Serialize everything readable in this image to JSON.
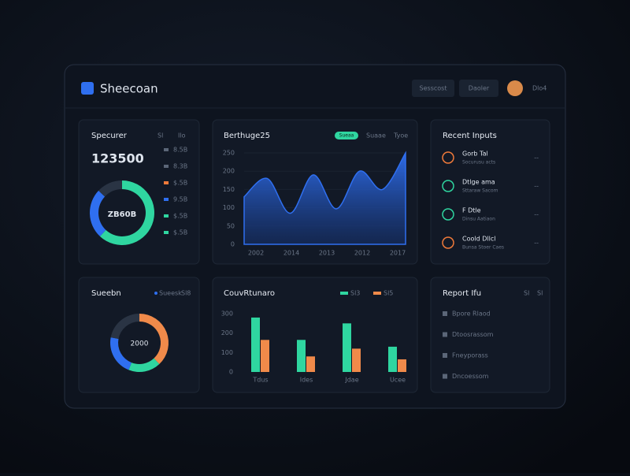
{
  "header": {
    "brand": "Sheecoan",
    "buttons": [
      "Sesscost",
      "Daoler"
    ],
    "user": "Dlo4"
  },
  "summary": {
    "title": "Specurer",
    "tabs": [
      "Sl",
      "Ilo"
    ],
    "value": "123500",
    "center_label": "ZB60B",
    "chart": {
      "type": "pie",
      "values": [
        62,
        25,
        13
      ],
      "colors": [
        "#2fd6a0",
        "#2f6ff0",
        "#2a3444"
      ]
    },
    "legend": [
      {
        "label": "8.5B",
        "color": "#5b6678"
      },
      {
        "label": "8.3B",
        "color": "#5b6678"
      },
      {
        "label": "$.5B",
        "color": "#f07a3a"
      },
      {
        "label": "9.5B",
        "color": "#2f6ff0"
      },
      {
        "label": "$.5B",
        "color": "#2fd6a0"
      },
      {
        "label": "$.5B",
        "color": "#2fd6a0"
      }
    ]
  },
  "trend": {
    "title": "Berthuge25",
    "chip": "Sueaa",
    "tabs": [
      "Suaae",
      "Tyoe"
    ],
    "chart": {
      "type": "area",
      "color": "#2f6ff0",
      "x": [
        0,
        1,
        2,
        3,
        4,
        5,
        6,
        7
      ],
      "values": [
        130,
        180,
        85,
        190,
        97,
        200,
        150,
        250
      ],
      "xlim": [
        0,
        7
      ],
      "ylim": [
        0,
        250
      ],
      "yticks": [
        0,
        50,
        100,
        150,
        200,
        250
      ],
      "xlabels": [
        "2002",
        "2014",
        "2013",
        "2012",
        "2017"
      ]
    }
  },
  "recent": {
    "title": "Recent Inputs",
    "items": [
      {
        "name": "Gorb Tal",
        "sub": "Socurusu acts",
        "time": "--",
        "color": "#f07a3a"
      },
      {
        "name": "Dtlge ama",
        "sub": "Sttaraw Sacom",
        "time": "--",
        "color": "#2fd6a0"
      },
      {
        "name": "F Dtle",
        "sub": "Dinsu Aatiaon",
        "time": "--",
        "color": "#2fd6a0"
      },
      {
        "name": "Coold Dllcl",
        "sub": "Bunsa Stoer Caes",
        "time": "--",
        "color": "#f07a3a"
      }
    ]
  },
  "split": {
    "title": "Sueebn",
    "tabs": [
      "Sueesk",
      "Sl8"
    ],
    "center_label": "2000",
    "chart": {
      "type": "pie",
      "values": [
        38,
        18,
        22,
        22
      ],
      "colors": [
        "#f08a4a",
        "#2fd6a0",
        "#2f6ff0",
        "#2a3444"
      ]
    }
  },
  "compare": {
    "title": "CouvRtunaro",
    "chart": {
      "type": "bar",
      "categories": [
        "Tdus",
        "Ides",
        "Jdae",
        "Ucee"
      ],
      "series": [
        {
          "name": "Sl3",
          "color": "#2fd6a0",
          "values": [
            280,
            165,
            250,
            130
          ]
        },
        {
          "name": "Sl5",
          "color": "#f08a4a",
          "values": [
            165,
            80,
            120,
            65
          ]
        }
      ],
      "ylim": [
        0,
        300
      ],
      "yticks": [
        0,
        100,
        200,
        300
      ]
    }
  },
  "report": {
    "title": "Report Ifu",
    "tabs": [
      "Sl",
      "Sl"
    ],
    "items": [
      "Bpore Rlaod",
      "Dtoosrassom",
      "Fneyporass",
      "Dncoessom"
    ]
  }
}
